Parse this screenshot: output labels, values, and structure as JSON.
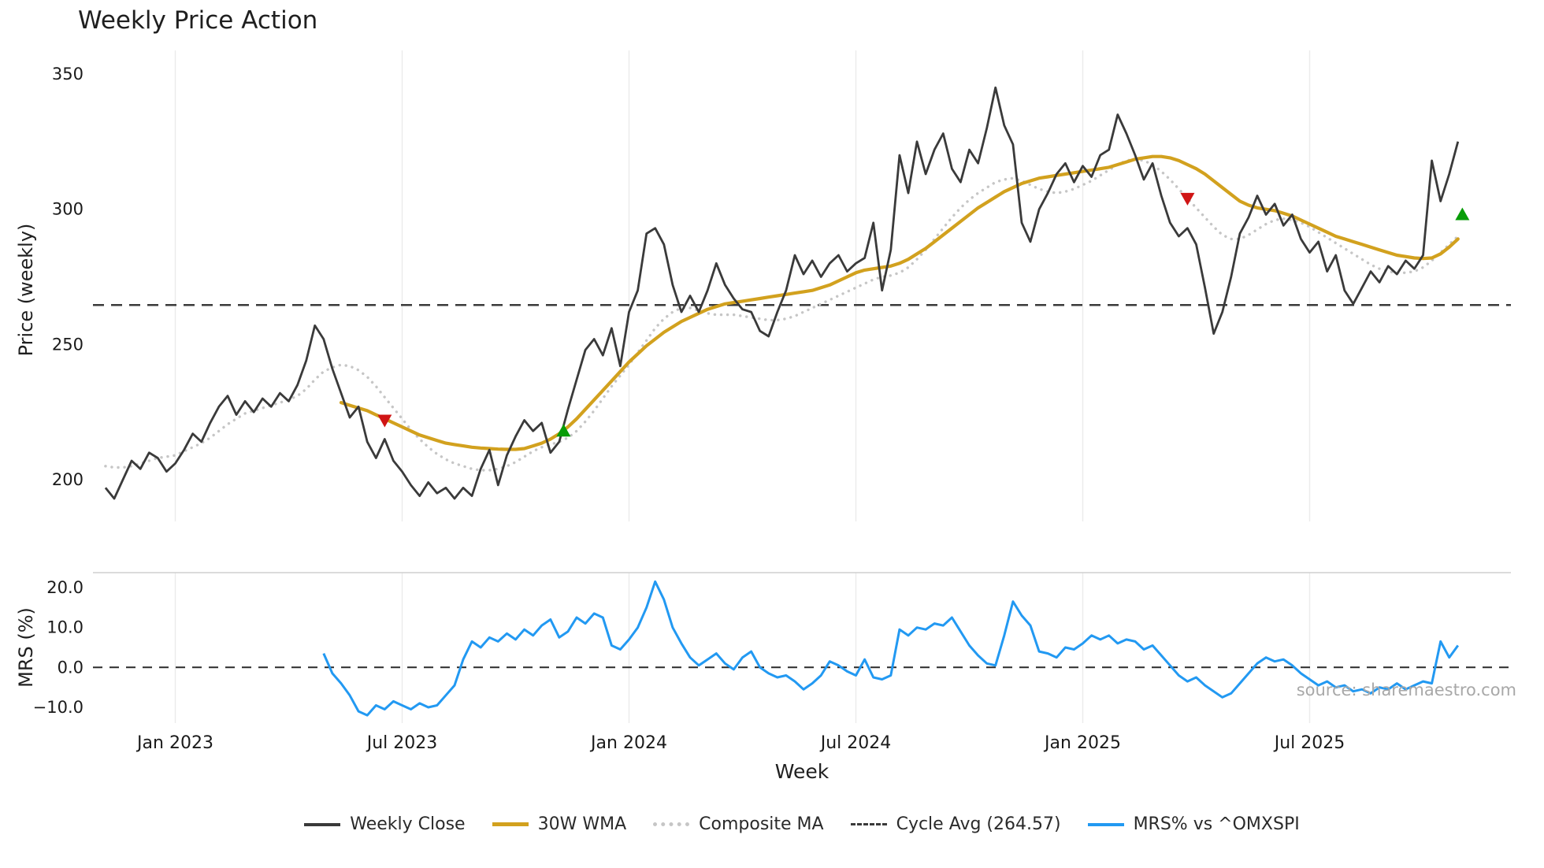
{
  "title": "Weekly Price Action",
  "source_watermark": "source: sharemaestro.com",
  "colors": {
    "weekly_close": "#3a3a3a",
    "wma_30w": "#d2a11e",
    "composite_ma": "#c6c6c6",
    "cycle_avg": "#3a3a3a",
    "mrs": "#2299f2",
    "buy_signal": "#089c08",
    "sell_signal": "#d01515",
    "grid": "#ebebeb",
    "panel_border": "#cfcfcf",
    "tick_text": "#1a1a1a"
  },
  "axes": {
    "price": {
      "label": "Price (weekly)",
      "ticks": [
        {
          "value": 350,
          "label": "350"
        },
        {
          "value": 300,
          "label": "300"
        },
        {
          "value": 250,
          "label": "250"
        },
        {
          "value": 200,
          "label": "200"
        }
      ]
    },
    "mrs": {
      "label": "MRS (%)",
      "ticks": [
        {
          "value": 20,
          "label": "20.0"
        },
        {
          "value": 10,
          "label": "10.0"
        },
        {
          "value": 0,
          "label": "0.0"
        },
        {
          "value": -10,
          "label": "−10.0"
        }
      ]
    },
    "x": {
      "label": "Week",
      "ticks": [
        {
          "week": 8,
          "label": "Jan 2023"
        },
        {
          "week": 34,
          "label": "Jul 2023"
        },
        {
          "week": 60,
          "label": "Jan 2024"
        },
        {
          "week": 86,
          "label": "Jul 2024"
        },
        {
          "week": 112,
          "label": "Jan 2025"
        },
        {
          "week": 138,
          "label": "Jul 2025"
        }
      ]
    }
  },
  "legend": {
    "items": [
      {
        "id": "weekly_close",
        "label": "Weekly Close",
        "style": "solid",
        "color": "#3a3a3a"
      },
      {
        "id": "wma_30w",
        "label": "30W WMA",
        "style": "solid",
        "color": "#d2a11e"
      },
      {
        "id": "composite_ma",
        "label": "Composite MA",
        "style": "dotted",
        "color": "#c6c6c6"
      },
      {
        "id": "cycle_avg",
        "label": "Cycle Avg (264.57)",
        "style": "dashed",
        "color": "#3a3a3a"
      },
      {
        "id": "mrs",
        "label": "MRS% vs ^OMXSPI",
        "style": "solid",
        "color": "#2299f2"
      }
    ]
  },
  "chart_data": {
    "type": "line",
    "x_unit": "week index, weekly data from Nov 2022 to Oct 2025",
    "weeks_total": 156,
    "cycle_avg": 264.57,
    "price_ylim": [
      185,
      355
    ],
    "mrs_ylim": [
      -14,
      23
    ],
    "grid": "vertical-only",
    "series": [
      {
        "id": "close",
        "name": "Weekly Close",
        "panel": "price",
        "start_week": 0,
        "values": [
          197,
          193,
          200,
          207,
          204,
          210,
          208,
          203,
          206,
          211,
          217,
          214,
          221,
          227,
          231,
          224,
          229,
          225,
          230,
          227,
          232,
          229,
          235,
          244,
          257,
          252,
          241,
          232,
          223,
          227,
          214,
          208,
          215,
          207,
          203,
          198,
          194,
          199,
          195,
          197,
          193,
          197,
          194,
          204,
          211,
          198,
          209,
          216,
          222,
          218,
          221,
          210,
          214,
          226,
          237,
          248,
          252,
          246,
          256,
          242,
          262,
          270,
          291,
          293,
          287,
          272,
          262,
          268,
          262,
          270,
          280,
          272,
          267,
          263,
          262,
          255,
          253,
          262,
          270,
          283,
          276,
          281,
          275,
          280,
          283,
          277,
          280,
          282,
          295,
          270,
          285,
          320,
          306,
          325,
          313,
          322,
          328,
          315,
          310,
          322,
          317,
          330,
          345,
          331,
          324,
          295,
          288,
          300,
          306,
          313,
          317,
          310,
          316,
          312,
          320,
          322,
          335,
          328,
          320,
          311,
          317,
          305,
          295,
          290,
          293,
          287,
          271,
          254,
          262,
          275,
          291,
          297,
          305,
          298,
          302,
          294,
          298,
          289,
          284,
          288,
          277,
          283,
          270,
          265,
          271,
          277,
          273,
          279,
          276,
          281,
          278,
          283,
          318,
          303,
          313,
          325
        ]
      },
      {
        "id": "wma",
        "name": "30W WMA",
        "panel": "price",
        "start_week": 27,
        "values": [
          228.5,
          227.5,
          226.5,
          225.5,
          224,
          222.5,
          221,
          219.5,
          218,
          216.5,
          215.5,
          214.5,
          213.5,
          213,
          212.5,
          212,
          211.7,
          211.5,
          211.3,
          211.2,
          211.2,
          211.5,
          212.5,
          213.5,
          215,
          217,
          219.5,
          222.5,
          226,
          229.5,
          233,
          236.5,
          240,
          243.5,
          246.5,
          249.5,
          252,
          254.5,
          256.5,
          258.5,
          260,
          261.5,
          263,
          264,
          265,
          265.5,
          266,
          266.5,
          267,
          267.5,
          268,
          268.5,
          269,
          269.5,
          270,
          271,
          272,
          273.5,
          275,
          276.5,
          277.5,
          278,
          278.5,
          279,
          280,
          281.5,
          283.5,
          285.5,
          288,
          290.5,
          293,
          295.5,
          298,
          300.5,
          302.5,
          304.5,
          306.5,
          308,
          309.5,
          310.5,
          311.5,
          312,
          312.5,
          313,
          313.5,
          314,
          314.5,
          315,
          315.5,
          316.5,
          317.5,
          318.5,
          319,
          319.5,
          319.5,
          319,
          318,
          316.5,
          315,
          313,
          310.5,
          308,
          305.5,
          303,
          301.5,
          300.5,
          300,
          299.5,
          298.5,
          297.5,
          296,
          294.5,
          293,
          291.5,
          290,
          289,
          288,
          287,
          286,
          285,
          284,
          283,
          282.5,
          282,
          281.8,
          282,
          283.5,
          286,
          289
        ]
      },
      {
        "id": "composite",
        "name": "Composite MA",
        "panel": "price",
        "start_week": 0,
        "values": [
          205,
          204.5,
          204.5,
          205,
          206,
          207,
          208,
          208.5,
          209,
          210.5,
          212,
          213.5,
          215.5,
          218,
          220.5,
          222.5,
          224.5,
          225.5,
          226.5,
          227.5,
          228.5,
          229.5,
          231,
          233.5,
          237,
          240,
          241.5,
          242.5,
          242,
          240.5,
          238,
          234.5,
          230.5,
          226.5,
          222.5,
          218.5,
          215,
          212,
          209.5,
          207.5,
          206,
          205,
          204,
          203.5,
          203.5,
          204,
          205,
          206.5,
          208.5,
          210.5,
          212,
          213,
          214,
          215.5,
          218,
          221.5,
          225.5,
          230,
          234.5,
          238.5,
          242.5,
          247,
          251.5,
          256,
          259.5,
          262,
          263.5,
          263.5,
          262.5,
          261.5,
          261,
          261,
          261,
          260.5,
          260,
          259.5,
          259,
          259,
          259.5,
          260.5,
          262,
          263.5,
          265,
          266.5,
          268,
          269.5,
          271,
          272.5,
          274,
          275,
          275.5,
          276.5,
          278.5,
          281.5,
          285,
          289,
          293,
          297,
          300.5,
          303.5,
          306,
          308,
          310,
          311,
          311.5,
          310.5,
          309,
          307.5,
          306.5,
          306,
          306.5,
          307.5,
          309,
          310.5,
          312.5,
          314.5,
          316.5,
          318,
          318.5,
          318,
          316.5,
          314,
          311,
          307.5,
          304,
          300.5,
          297,
          293.5,
          290.5,
          289,
          289,
          290.5,
          292.5,
          294.5,
          296,
          296.5,
          296,
          295,
          293.5,
          291.5,
          289.5,
          287.5,
          285.5,
          283.5,
          281.5,
          279.5,
          278,
          277,
          276.5,
          276.5,
          277,
          278.5,
          281,
          284,
          287,
          290
        ]
      },
      {
        "id": "mrs",
        "name": "MRS% vs ^OMXSPI",
        "panel": "mrs",
        "start_week": 25,
        "values": [
          3.5,
          -1.5,
          -4,
          -7,
          -11,
          -12,
          -9.5,
          -10.5,
          -8.5,
          -9.5,
          -10.5,
          -9,
          -10,
          -9.5,
          -7,
          -4.5,
          2,
          6.5,
          5,
          7.5,
          6.5,
          8.5,
          7,
          9.5,
          8,
          10.5,
          12,
          7.5,
          9,
          12.5,
          11,
          13.5,
          12.5,
          5.5,
          4.5,
          7,
          10,
          15,
          21.5,
          17,
          10,
          6,
          2.5,
          0.5,
          2,
          3.5,
          1,
          -0.5,
          2.5,
          4,
          0,
          -1.5,
          -2.5,
          -2,
          -3.5,
          -5.5,
          -4,
          -2,
          1.5,
          0.5,
          -1,
          -2,
          2,
          -2.5,
          -3,
          -2,
          9.5,
          8,
          10,
          9.5,
          11,
          10.5,
          12.5,
          9,
          5.5,
          3,
          1,
          0.5,
          8,
          16.5,
          13,
          10.5,
          4,
          3.5,
          2.5,
          5,
          4.5,
          6,
          8,
          7,
          8,
          6,
          7,
          6.5,
          4.5,
          5.5,
          3,
          0.5,
          -2,
          -3.5,
          -2.5,
          -4.5,
          -6,
          -7.5,
          -6.5,
          -4,
          -1.5,
          1,
          2.5,
          1.5,
          2,
          0.5,
          -1.5,
          -3,
          -4.5,
          -3.5,
          -5,
          -4.5,
          -6,
          -5.5,
          -6.5,
          -5,
          -5.5,
          -4,
          -5.5,
          -4.5,
          -3.5,
          -4,
          6.5,
          2.5,
          5.5
        ]
      }
    ],
    "signals": {
      "sell": [
        {
          "week": 32,
          "price": 222
        },
        {
          "week": 124,
          "price": 304
        }
      ],
      "buy": [
        {
          "week": 52.5,
          "price": 218
        },
        {
          "week": 155.5,
          "price": 298
        }
      ]
    }
  }
}
